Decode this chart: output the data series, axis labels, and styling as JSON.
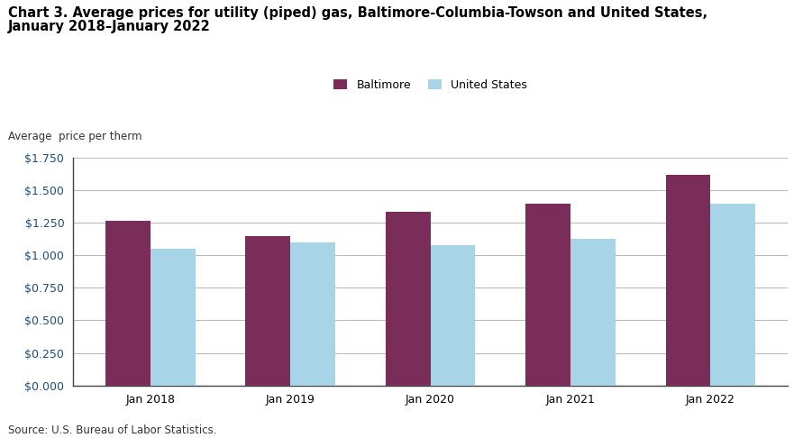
{
  "title_line1": "Chart 3. Average prices for utility (piped) gas, Baltimore-Columbia-Towson and United States,",
  "title_line2": "January 2018–January 2022",
  "ylabel": "Average  price per therm",
  "source": "Source: U.S. Bureau of Labor Statistics.",
  "categories": [
    "Jan 2018",
    "Jan 2019",
    "Jan 2020",
    "Jan 2021",
    "Jan 2022"
  ],
  "baltimore_values": [
    1.267,
    1.147,
    1.337,
    1.397,
    1.617
  ],
  "us_values": [
    1.047,
    1.097,
    1.077,
    1.127,
    1.397
  ],
  "baltimore_color": "#7B2D5A",
  "us_color": "#A8D4E8",
  "ylim": [
    0,
    1.75
  ],
  "yticks": [
    0.0,
    0.25,
    0.5,
    0.75,
    1.0,
    1.25,
    1.5,
    1.75
  ],
  "legend_labels": [
    "Baltimore",
    "United States"
  ],
  "bar_width": 0.32,
  "figsize": [
    9.01,
    4.86
  ],
  "dpi": 100,
  "background_color": "#ffffff",
  "grid_color": "#bbbbbb",
  "title_fontsize": 10.5,
  "axis_label_fontsize": 8.5,
  "tick_fontsize": 9,
  "source_fontsize": 8.5,
  "legend_fontsize": 9
}
